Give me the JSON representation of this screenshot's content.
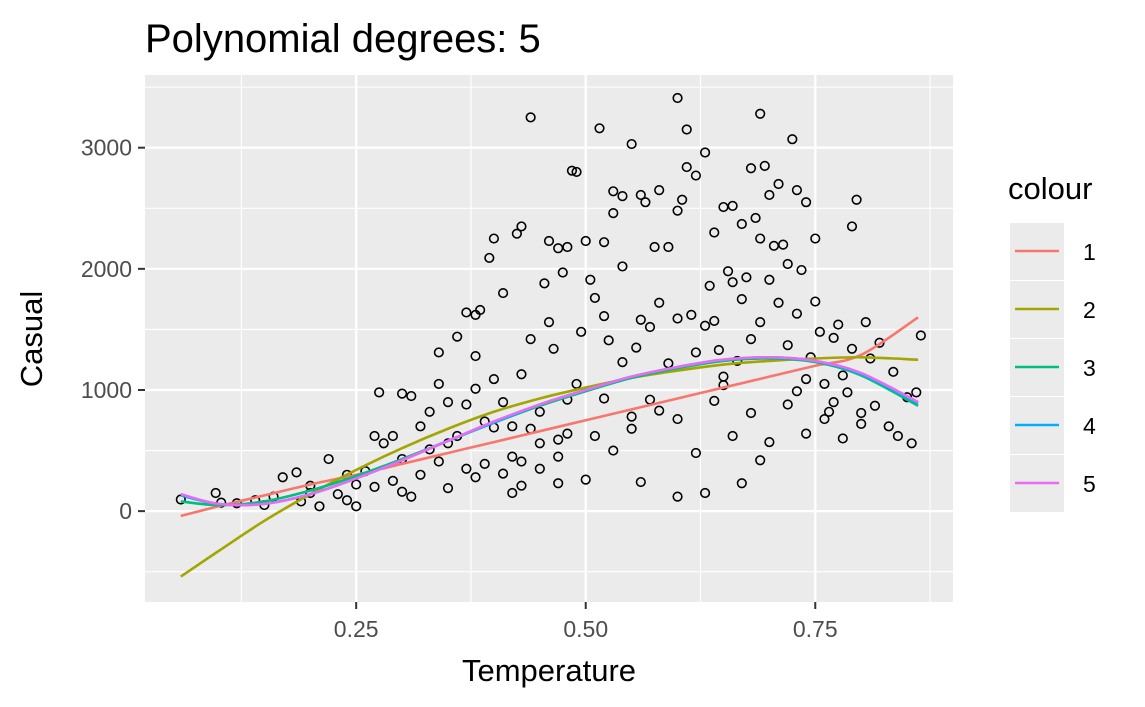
{
  "chart_data": {
    "type": "scatter",
    "title": "Polynomial degrees: 5",
    "xlabel": "Temperature",
    "ylabel": "Casual",
    "xlim": [
      0.02,
      0.9
    ],
    "ylim": [
      -750,
      3600
    ],
    "x_ticks": [
      0.25,
      0.5,
      0.75
    ],
    "x_tick_labels": [
      "0.25",
      "0.50",
      "0.75"
    ],
    "y_ticks": [
      0,
      1000,
      2000,
      3000
    ],
    "y_tick_labels": [
      "0",
      "1000",
      "2000",
      "3000"
    ],
    "grid": true,
    "points": [
      [
        0.059,
        96
      ],
      [
        0.097,
        150
      ],
      [
        0.103,
        70
      ],
      [
        0.12,
        65
      ],
      [
        0.14,
        90
      ],
      [
        0.15,
        50
      ],
      [
        0.16,
        120
      ],
      [
        0.17,
        280
      ],
      [
        0.185,
        320
      ],
      [
        0.19,
        80
      ],
      [
        0.2,
        150
      ],
      [
        0.2,
        210
      ],
      [
        0.22,
        430
      ],
      [
        0.21,
        40
      ],
      [
        0.23,
        140
      ],
      [
        0.24,
        90
      ],
      [
        0.25,
        220
      ],
      [
        0.25,
        40
      ],
      [
        0.26,
        330
      ],
      [
        0.27,
        200
      ],
      [
        0.275,
        980
      ],
      [
        0.28,
        560
      ],
      [
        0.29,
        620
      ],
      [
        0.29,
        250
      ],
      [
        0.3,
        970
      ],
      [
        0.3,
        430
      ],
      [
        0.31,
        950
      ],
      [
        0.31,
        120
      ],
      [
        0.32,
        700
      ],
      [
        0.32,
        300
      ],
      [
        0.33,
        820
      ],
      [
        0.33,
        510
      ],
      [
        0.34,
        1310
      ],
      [
        0.34,
        1050
      ],
      [
        0.35,
        900
      ],
      [
        0.35,
        190
      ],
      [
        0.36,
        1440
      ],
      [
        0.36,
        620
      ],
      [
        0.37,
        1640
      ],
      [
        0.37,
        880
      ],
      [
        0.37,
        350
      ],
      [
        0.38,
        1280
      ],
      [
        0.38,
        1010
      ],
      [
        0.38,
        1620
      ],
      [
        0.385,
        1660
      ],
      [
        0.39,
        740
      ],
      [
        0.39,
        390
      ],
      [
        0.395,
        2090
      ],
      [
        0.4,
        2250
      ],
      [
        0.4,
        1090
      ],
      [
        0.4,
        690
      ],
      [
        0.41,
        1800
      ],
      [
        0.41,
        900
      ],
      [
        0.41,
        310
      ],
      [
        0.42,
        450
      ],
      [
        0.42,
        700
      ],
      [
        0.425,
        2290
      ],
      [
        0.43,
        2350
      ],
      [
        0.43,
        1130
      ],
      [
        0.43,
        210
      ],
      [
        0.44,
        3250
      ],
      [
        0.44,
        680
      ],
      [
        0.44,
        1420
      ],
      [
        0.45,
        820
      ],
      [
        0.45,
        350
      ],
      [
        0.455,
        1880
      ],
      [
        0.46,
        1560
      ],
      [
        0.46,
        2230
      ],
      [
        0.465,
        1340
      ],
      [
        0.47,
        2170
      ],
      [
        0.47,
        590
      ],
      [
        0.475,
        1970
      ],
      [
        0.48,
        2180
      ],
      [
        0.48,
        920
      ],
      [
        0.485,
        2810
      ],
      [
        0.49,
        2800
      ],
      [
        0.49,
        1050
      ],
      [
        0.495,
        1480
      ],
      [
        0.5,
        2230
      ],
      [
        0.5,
        260
      ],
      [
        0.505,
        1910
      ],
      [
        0.51,
        1760
      ],
      [
        0.515,
        3160
      ],
      [
        0.52,
        2220
      ],
      [
        0.52,
        1610
      ],
      [
        0.525,
        1410
      ],
      [
        0.53,
        2640
      ],
      [
        0.53,
        2460
      ],
      [
        0.53,
        500
      ],
      [
        0.54,
        2600
      ],
      [
        0.54,
        2020
      ],
      [
        0.54,
        1230
      ],
      [
        0.55,
        3030
      ],
      [
        0.55,
        780
      ],
      [
        0.555,
        1350
      ],
      [
        0.56,
        2610
      ],
      [
        0.56,
        1580
      ],
      [
        0.565,
        2550
      ],
      [
        0.57,
        1520
      ],
      [
        0.575,
        2180
      ],
      [
        0.58,
        2650
      ],
      [
        0.58,
        1720
      ],
      [
        0.59,
        2180
      ],
      [
        0.59,
        1220
      ],
      [
        0.6,
        3410
      ],
      [
        0.6,
        2480
      ],
      [
        0.6,
        1590
      ],
      [
        0.6,
        120
      ],
      [
        0.605,
        2570
      ],
      [
        0.61,
        3150
      ],
      [
        0.61,
        2840
      ],
      [
        0.615,
        1620
      ],
      [
        0.62,
        2770
      ],
      [
        0.62,
        1310
      ],
      [
        0.63,
        2960
      ],
      [
        0.63,
        1530
      ],
      [
        0.635,
        1860
      ],
      [
        0.64,
        2300
      ],
      [
        0.64,
        1570
      ],
      [
        0.645,
        1330
      ],
      [
        0.65,
        2510
      ],
      [
        0.65,
        1110
      ],
      [
        0.655,
        1980
      ],
      [
        0.66,
        1890
      ],
      [
        0.66,
        2520
      ],
      [
        0.665,
        1240
      ],
      [
        0.67,
        2370
      ],
      [
        0.67,
        1750
      ],
      [
        0.675,
        1930
      ],
      [
        0.68,
        2830
      ],
      [
        0.68,
        1420
      ],
      [
        0.685,
        2420
      ],
      [
        0.69,
        3280
      ],
      [
        0.69,
        2250
      ],
      [
        0.69,
        1560
      ],
      [
        0.695,
        2850
      ],
      [
        0.7,
        2610
      ],
      [
        0.7,
        1910
      ],
      [
        0.705,
        2190
      ],
      [
        0.71,
        2700
      ],
      [
        0.71,
        1720
      ],
      [
        0.715,
        2200
      ],
      [
        0.72,
        2040
      ],
      [
        0.72,
        1370
      ],
      [
        0.725,
        3070
      ],
      [
        0.73,
        2650
      ],
      [
        0.73,
        1630
      ],
      [
        0.735,
        1990
      ],
      [
        0.74,
        2550
      ],
      [
        0.74,
        1090
      ],
      [
        0.745,
        1270
      ],
      [
        0.75,
        2250
      ],
      [
        0.75,
        1730
      ],
      [
        0.755,
        1480
      ],
      [
        0.76,
        1050
      ],
      [
        0.765,
        820
      ],
      [
        0.77,
        1430
      ],
      [
        0.775,
        1540
      ],
      [
        0.78,
        1120
      ],
      [
        0.785,
        980
      ],
      [
        0.79,
        2350
      ],
      [
        0.79,
        1340
      ],
      [
        0.795,
        2570
      ],
      [
        0.8,
        810
      ],
      [
        0.805,
        1560
      ],
      [
        0.81,
        1260
      ],
      [
        0.815,
        870
      ],
      [
        0.82,
        1390
      ],
      [
        0.83,
        700
      ],
      [
        0.835,
        1150
      ],
      [
        0.84,
        620
      ],
      [
        0.85,
        940
      ],
      [
        0.855,
        560
      ],
      [
        0.86,
        980
      ],
      [
        0.865,
        1450
      ],
      [
        0.27,
        620
      ],
      [
        0.3,
        160
      ],
      [
        0.35,
        560
      ],
      [
        0.42,
        150
      ],
      [
        0.45,
        560
      ],
      [
        0.48,
        640
      ],
      [
        0.52,
        930
      ],
      [
        0.55,
        680
      ],
      [
        0.58,
        830
      ],
      [
        0.62,
        480
      ],
      [
        0.64,
        910
      ],
      [
        0.66,
        620
      ],
      [
        0.68,
        810
      ],
      [
        0.7,
        570
      ],
      [
        0.72,
        880
      ],
      [
        0.74,
        640
      ],
      [
        0.76,
        760
      ],
      [
        0.78,
        600
      ],
      [
        0.8,
        720
      ],
      [
        0.34,
        410
      ],
      [
        0.38,
        280
      ],
      [
        0.43,
        410
      ],
      [
        0.47,
        230
      ],
      [
        0.51,
        620
      ],
      [
        0.57,
        920
      ],
      [
        0.6,
        760
      ],
      [
        0.65,
        1040
      ],
      [
        0.69,
        420
      ],
      [
        0.73,
        990
      ],
      [
        0.77,
        900
      ],
      [
        0.56,
        240
      ],
      [
        0.63,
        150
      ],
      [
        0.67,
        230
      ],
      [
        0.47,
        450
      ],
      [
        0.24,
        300
      ]
    ],
    "series": [
      {
        "name": "1",
        "color": "#F8766D",
        "x": [
          0.059,
          0.1,
          0.15,
          0.2,
          0.25,
          0.3,
          0.35,
          0.4,
          0.45,
          0.5,
          0.55,
          0.6,
          0.65,
          0.7,
          0.75,
          0.8,
          0.862
        ],
        "y": [
          -40,
          40,
          130,
          220,
          300,
          390,
          480,
          570,
          660,
          750,
          840,
          930,
          1020,
          1110,
          1200,
          1290,
          1600
        ]
      },
      {
        "name": "2",
        "color": "#A3A500",
        "x": [
          0.059,
          0.1,
          0.15,
          0.2,
          0.25,
          0.3,
          0.35,
          0.4,
          0.45,
          0.5,
          0.55,
          0.6,
          0.65,
          0.7,
          0.75,
          0.8,
          0.862
        ],
        "y": [
          -540,
          -330,
          -80,
          140,
          340,
          520,
          680,
          820,
          930,
          1020,
          1100,
          1160,
          1210,
          1240,
          1260,
          1270,
          1250
        ]
      },
      {
        "name": "3",
        "color": "#00BF7D",
        "x": [
          0.059,
          0.1,
          0.15,
          0.2,
          0.25,
          0.3,
          0.35,
          0.4,
          0.45,
          0.5,
          0.55,
          0.6,
          0.65,
          0.7,
          0.75,
          0.8,
          0.862
        ],
        "y": [
          80,
          50,
          80,
          170,
          290,
          430,
          580,
          730,
          870,
          990,
          1100,
          1180,
          1240,
          1260,
          1230,
          1120,
          870
        ]
      },
      {
        "name": "4",
        "color": "#00B0F6",
        "x": [
          0.059,
          0.1,
          0.15,
          0.2,
          0.25,
          0.3,
          0.35,
          0.4,
          0.45,
          0.5,
          0.55,
          0.6,
          0.65,
          0.7,
          0.75,
          0.8,
          0.862
        ],
        "y": [
          130,
          60,
          60,
          140,
          270,
          420,
          580,
          730,
          880,
          1000,
          1110,
          1190,
          1250,
          1270,
          1240,
          1130,
          890
        ]
      },
      {
        "name": "5",
        "color": "#E76BF3",
        "x": [
          0.059,
          0.1,
          0.15,
          0.2,
          0.25,
          0.3,
          0.35,
          0.4,
          0.45,
          0.5,
          0.55,
          0.6,
          0.65,
          0.7,
          0.75,
          0.8,
          0.862
        ],
        "y": [
          140,
          60,
          60,
          140,
          270,
          420,
          580,
          740,
          880,
          1000,
          1110,
          1190,
          1250,
          1270,
          1240,
          1140,
          900
        ]
      }
    ],
    "legend": {
      "title": "colour",
      "placement": "right"
    }
  }
}
